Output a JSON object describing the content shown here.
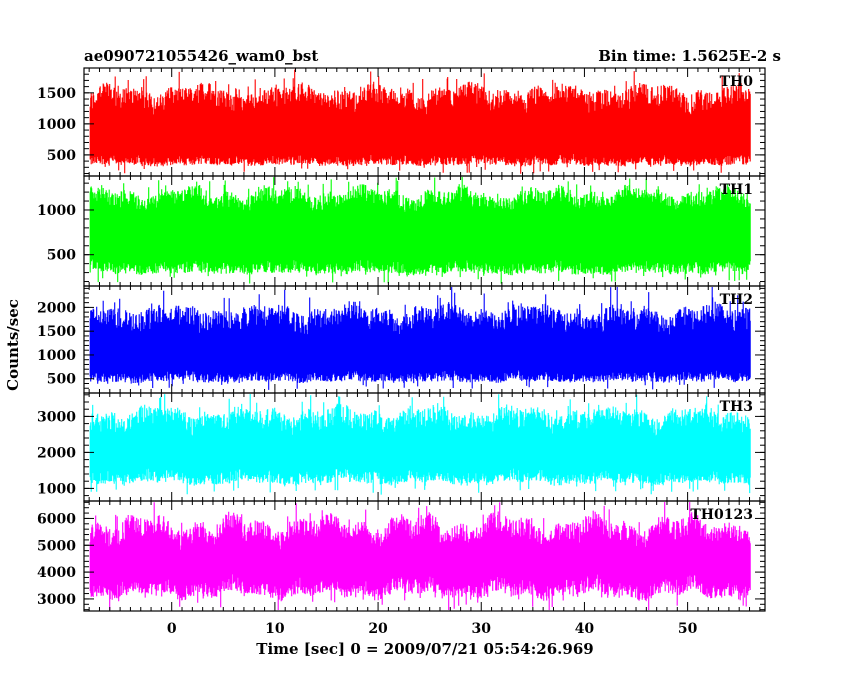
{
  "header": {
    "title": "ae090721055426_wam0_bst",
    "bin_time": "Bin time: 1.5625E-2 s"
  },
  "chart_data": {
    "type": "line",
    "ylabel": "Counts/sec",
    "xlabel": "Time [sec] 0 = 2009/07/21 05:54:26.969",
    "xlim": [
      -8.5,
      57.5
    ],
    "data_x_range": [
      -7.9,
      56.1
    ],
    "x_ticks": [
      0,
      10,
      20,
      30,
      40,
      50
    ],
    "x_tick_labels": [
      "0",
      "10",
      "20",
      "30",
      "40",
      "50"
    ],
    "grid": false,
    "panels": [
      {
        "name": "TH0",
        "color": "#ff0000",
        "ylim": [
          160,
          1900
        ],
        "mean": 900,
        "band": [
          380,
          1430
        ],
        "spike_range": [
          200,
          1860
        ],
        "y_ticks": [
          500,
          1000,
          1500
        ],
        "y_tick_labels": [
          "500",
          "1000",
          "1500"
        ]
      },
      {
        "name": "TH1",
        "color": "#00ff00",
        "ylim": [
          150,
          1380
        ],
        "mean": 720,
        "band": [
          330,
          1140
        ],
        "spike_range": [
          170,
          1360
        ],
        "y_ticks": [
          500,
          1000
        ],
        "y_tick_labels": [
          "500",
          "1000"
        ]
      },
      {
        "name": "TH2",
        "color": "#0000ff",
        "ylim": [
          200,
          2450
        ],
        "mean": 1100,
        "band": [
          500,
          1800
        ],
        "spike_range": [
          260,
          2350
        ],
        "y_ticks": [
          500,
          1000,
          1500,
          2000
        ],
        "y_tick_labels": [
          "500",
          "1000",
          "1500",
          "2000"
        ]
      },
      {
        "name": "TH3",
        "color": "#00ffff",
        "ylim": [
          650,
          3650
        ],
        "mean": 2100,
        "band": [
          1250,
          2950
        ],
        "spike_range": [
          850,
          3600
        ],
        "y_ticks": [
          1000,
          2000,
          3000
        ],
        "y_tick_labels": [
          "1000",
          "2000",
          "3000"
        ]
      },
      {
        "name": "TH0123",
        "color": "#ff00ff",
        "ylim": [
          2550,
          6650
        ],
        "mean": 4200,
        "band": [
          3300,
          5600
        ],
        "spike_range": [
          2600,
          6500
        ],
        "y_ticks": [
          3000,
          4000,
          5000,
          6000
        ],
        "y_tick_labels": [
          "3000",
          "4000",
          "5000",
          "6000"
        ]
      }
    ]
  }
}
